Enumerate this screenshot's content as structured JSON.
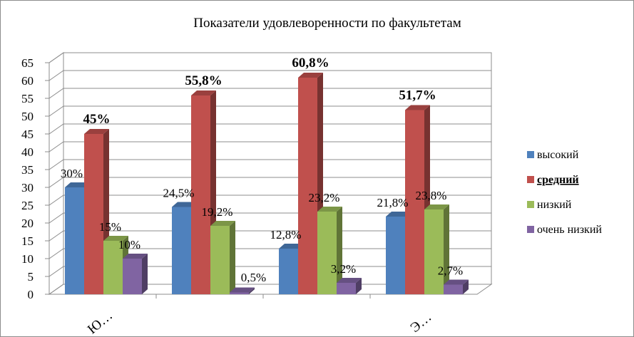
{
  "chart_data": {
    "type": "bar",
    "title": "Показатели удовлеворенности по факультетам",
    "categories": [
      "Ю…",
      "",
      "",
      "Э…"
    ],
    "ylim": [
      0,
      65
    ],
    "yticks": [
      0,
      5,
      10,
      15,
      20,
      25,
      30,
      35,
      40,
      45,
      50,
      55,
      60,
      65
    ],
    "grid": true,
    "legend_position": "right",
    "series": [
      {
        "name": "высокий",
        "color": "#4f81bd",
        "values": [
          30,
          24.5,
          12.8,
          21.8
        ],
        "labels": [
          "30%",
          "24,5%",
          "12,8%",
          "21,8%"
        ],
        "bold_labels": false
      },
      {
        "name": "средний",
        "color": "#c0504d",
        "values": [
          45,
          55.8,
          60.8,
          51.7
        ],
        "labels": [
          "45%",
          "55,8%",
          "60,8%",
          "51,7%"
        ],
        "bold_labels": true
      },
      {
        "name": "низкий",
        "color": "#9bbb59",
        "values": [
          15,
          19.2,
          23.2,
          23.8
        ],
        "labels": [
          "15%",
          "19,2%",
          "23,2%",
          "23,8%"
        ],
        "bold_labels": false
      },
      {
        "name": "очень низкий",
        "color": "#8064a2",
        "values": [
          10,
          0.5,
          3.2,
          2.7
        ],
        "labels": [
          "10%",
          "0,5%",
          "3,2%",
          "2,7%"
        ],
        "bold_labels": false
      }
    ]
  }
}
